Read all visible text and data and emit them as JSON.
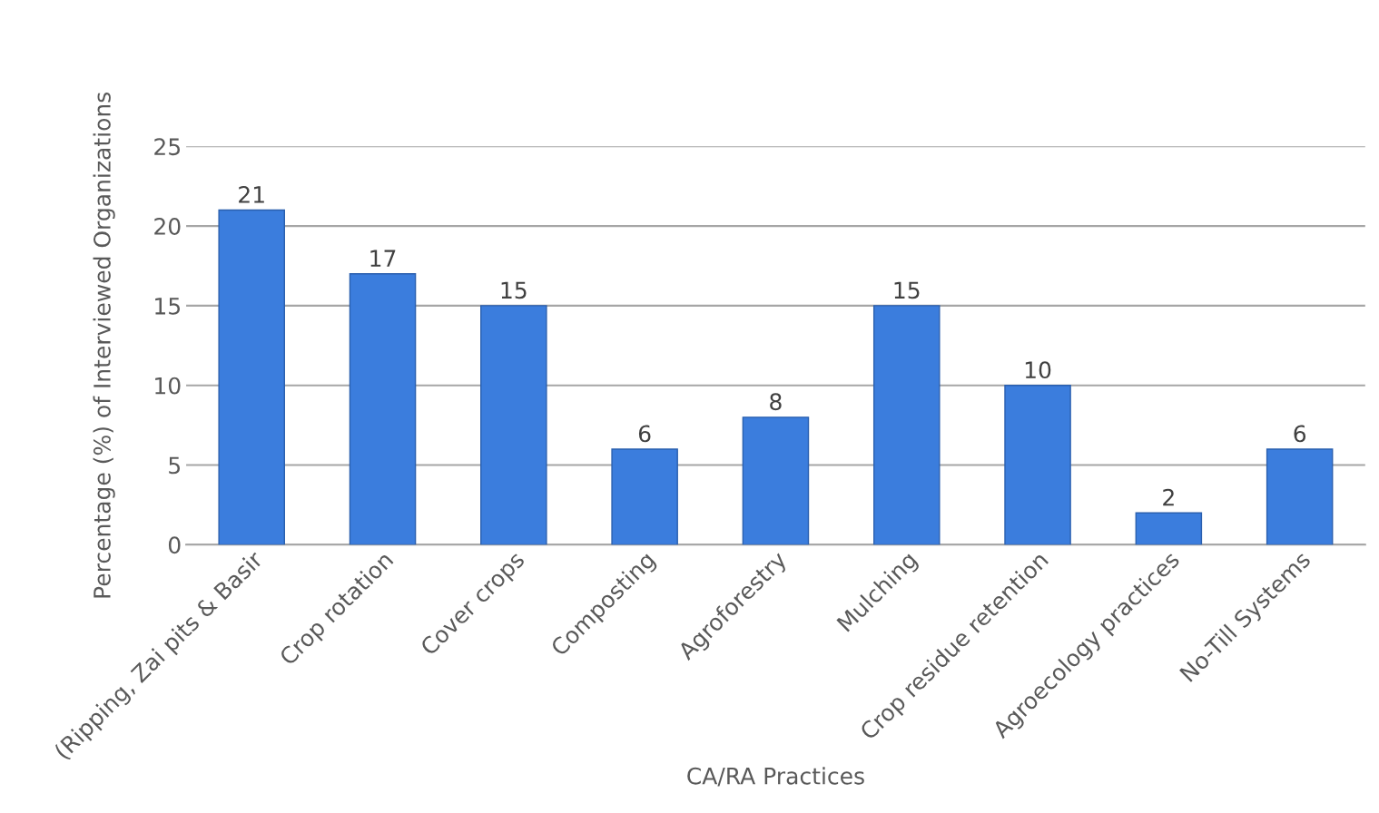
{
  "chart_data": {
    "type": "bar",
    "categories": [
      "(Ripping, Zai pits & Basir",
      "Crop rotation",
      "Cover crops",
      "Composting",
      "Agroforestry",
      "Mulching",
      "Crop residue retention",
      "Agroecology practices",
      "No-Till Systems"
    ],
    "values": [
      21,
      17,
      15,
      6,
      8,
      15,
      10,
      2,
      6
    ],
    "color": "#3b7ddd",
    "xlabel": "CA/RA Practices",
    "ylabel": "Percentage (%) of Interviewed Organizations",
    "ylim": [
      0,
      25
    ],
    "yticks": [
      0,
      5,
      10,
      15,
      20,
      25
    ],
    "grid": "y",
    "data_labels": true
  }
}
